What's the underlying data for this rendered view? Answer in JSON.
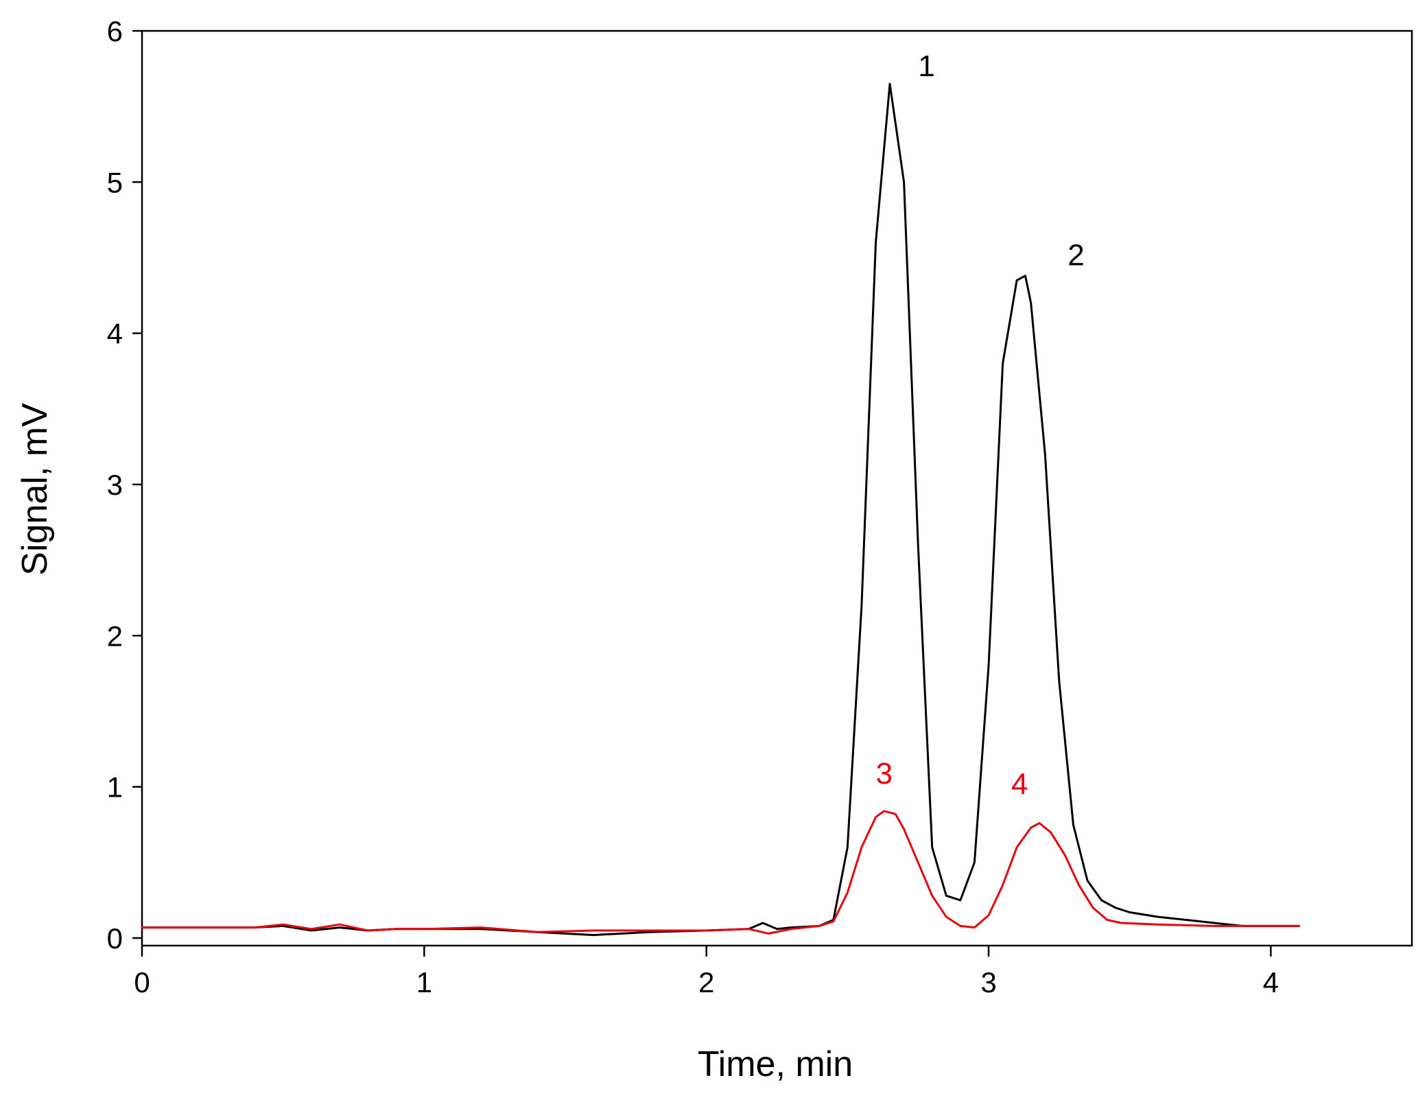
{
  "chart_data": {
    "type": "line",
    "xlabel": "Time, min",
    "ylabel": "Signal, mV",
    "xlim": [
      0,
      4.5
    ],
    "ylim": [
      -0.05,
      6
    ],
    "xticks": [
      0,
      1,
      2,
      3,
      4
    ],
    "yticks": [
      0,
      1,
      2,
      3,
      4,
      5,
      6
    ],
    "grid": false,
    "series": [
      {
        "color": "#000000",
        "points": [
          [
            0.0,
            0.07
          ],
          [
            0.2,
            0.07
          ],
          [
            0.4,
            0.07
          ],
          [
            0.5,
            0.08
          ],
          [
            0.6,
            0.05
          ],
          [
            0.7,
            0.07
          ],
          [
            0.8,
            0.05
          ],
          [
            0.9,
            0.06
          ],
          [
            1.0,
            0.06
          ],
          [
            1.2,
            0.06
          ],
          [
            1.4,
            0.04
          ],
          [
            1.6,
            0.02
          ],
          [
            1.8,
            0.04
          ],
          [
            2.0,
            0.05
          ],
          [
            2.15,
            0.06
          ],
          [
            2.2,
            0.1
          ],
          [
            2.25,
            0.06
          ],
          [
            2.3,
            0.07
          ],
          [
            2.4,
            0.08
          ],
          [
            2.45,
            0.12
          ],
          [
            2.5,
            0.6
          ],
          [
            2.55,
            2.2
          ],
          [
            2.6,
            4.6
          ],
          [
            2.65,
            5.65
          ],
          [
            2.7,
            5.0
          ],
          [
            2.75,
            2.6
          ],
          [
            2.8,
            0.6
          ],
          [
            2.85,
            0.28
          ],
          [
            2.9,
            0.25
          ],
          [
            2.95,
            0.5
          ],
          [
            3.0,
            1.8
          ],
          [
            3.05,
            3.8
          ],
          [
            3.1,
            4.35
          ],
          [
            3.13,
            4.38
          ],
          [
            3.15,
            4.2
          ],
          [
            3.2,
            3.2
          ],
          [
            3.25,
            1.7
          ],
          [
            3.3,
            0.75
          ],
          [
            3.35,
            0.38
          ],
          [
            3.4,
            0.25
          ],
          [
            3.45,
            0.2
          ],
          [
            3.5,
            0.17
          ],
          [
            3.6,
            0.14
          ],
          [
            3.7,
            0.12
          ],
          [
            3.8,
            0.1
          ],
          [
            3.9,
            0.08
          ],
          [
            4.0,
            0.08
          ],
          [
            4.1,
            0.08
          ]
        ]
      },
      {
        "color": "#e8000b",
        "points": [
          [
            0.0,
            0.07
          ],
          [
            0.2,
            0.07
          ],
          [
            0.4,
            0.07
          ],
          [
            0.5,
            0.09
          ],
          [
            0.6,
            0.06
          ],
          [
            0.7,
            0.09
          ],
          [
            0.8,
            0.05
          ],
          [
            0.9,
            0.06
          ],
          [
            1.0,
            0.06
          ],
          [
            1.2,
            0.07
          ],
          [
            1.4,
            0.04
          ],
          [
            1.6,
            0.05
          ],
          [
            1.8,
            0.05
          ],
          [
            2.0,
            0.05
          ],
          [
            2.15,
            0.06
          ],
          [
            2.22,
            0.03
          ],
          [
            2.3,
            0.06
          ],
          [
            2.4,
            0.08
          ],
          [
            2.45,
            0.11
          ],
          [
            2.5,
            0.3
          ],
          [
            2.55,
            0.6
          ],
          [
            2.6,
            0.8
          ],
          [
            2.63,
            0.84
          ],
          [
            2.67,
            0.82
          ],
          [
            2.7,
            0.72
          ],
          [
            2.75,
            0.5
          ],
          [
            2.8,
            0.28
          ],
          [
            2.85,
            0.14
          ],
          [
            2.9,
            0.08
          ],
          [
            2.95,
            0.07
          ],
          [
            3.0,
            0.15
          ],
          [
            3.05,
            0.35
          ],
          [
            3.1,
            0.6
          ],
          [
            3.15,
            0.73
          ],
          [
            3.18,
            0.76
          ],
          [
            3.22,
            0.7
          ],
          [
            3.27,
            0.55
          ],
          [
            3.32,
            0.35
          ],
          [
            3.37,
            0.2
          ],
          [
            3.42,
            0.12
          ],
          [
            3.47,
            0.1
          ],
          [
            3.6,
            0.09
          ],
          [
            3.8,
            0.08
          ],
          [
            4.0,
            0.08
          ],
          [
            4.1,
            0.08
          ]
        ]
      }
    ],
    "annotations": [
      {
        "text": "1",
        "x": 2.78,
        "y": 5.7,
        "color": "#000000"
      },
      {
        "text": "2",
        "x": 3.31,
        "y": 4.45,
        "color": "#000000"
      },
      {
        "text": "3",
        "x": 2.63,
        "y": 1.02,
        "color": "#e8000b"
      },
      {
        "text": "4",
        "x": 3.11,
        "y": 0.95,
        "color": "#e8000b"
      }
    ]
  }
}
